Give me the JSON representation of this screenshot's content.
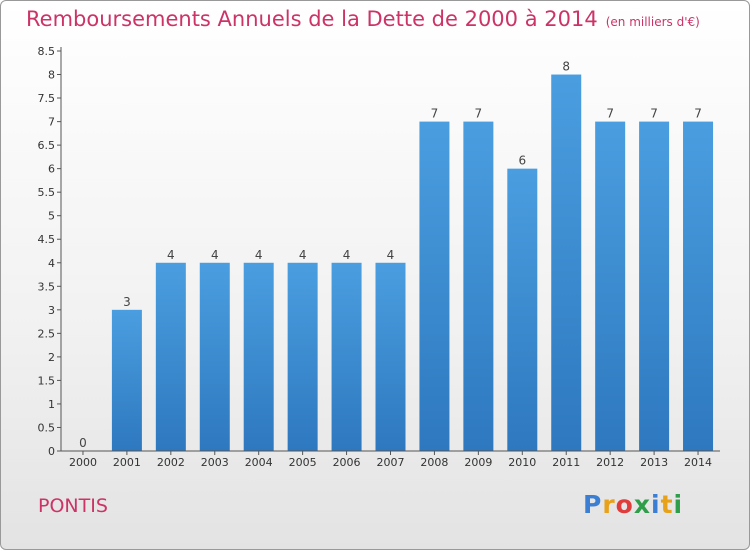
{
  "chart_data": {
    "type": "bar",
    "title": "Remboursements Annuels de la Dette de 2000 à 2014",
    "unit_label": "(en milliers d'€)",
    "categories": [
      "2000",
      "2001",
      "2002",
      "2003",
      "2004",
      "2005",
      "2006",
      "2007",
      "2008",
      "2009",
      "2010",
      "2011",
      "2012",
      "2013",
      "2014"
    ],
    "values": [
      0,
      3,
      4,
      4,
      4,
      4,
      4,
      4,
      7,
      7,
      6,
      8,
      7,
      7,
      7
    ],
    "data_labels": [
      "0",
      "3",
      "4",
      "4",
      "4",
      "4",
      "4",
      "4",
      "7",
      "7",
      "6",
      "8",
      "7",
      "7",
      "7"
    ],
    "ylim": [
      0,
      8.5
    ],
    "yticks": [
      "0",
      "0.5",
      "1",
      "1.5",
      "2",
      "2.5",
      "3",
      "3.5",
      "4",
      "4.5",
      "5",
      "5.5",
      "6",
      "6.5",
      "7",
      "7.5",
      "8",
      "8.5"
    ],
    "grid": false,
    "bar_color": "#4a9ee0",
    "bar_color_dark": "#2e78bf"
  },
  "commune": "PONTIS",
  "logo_text": "Proxiti",
  "colors": {
    "title": "#cc3366",
    "axis": "#333333"
  }
}
